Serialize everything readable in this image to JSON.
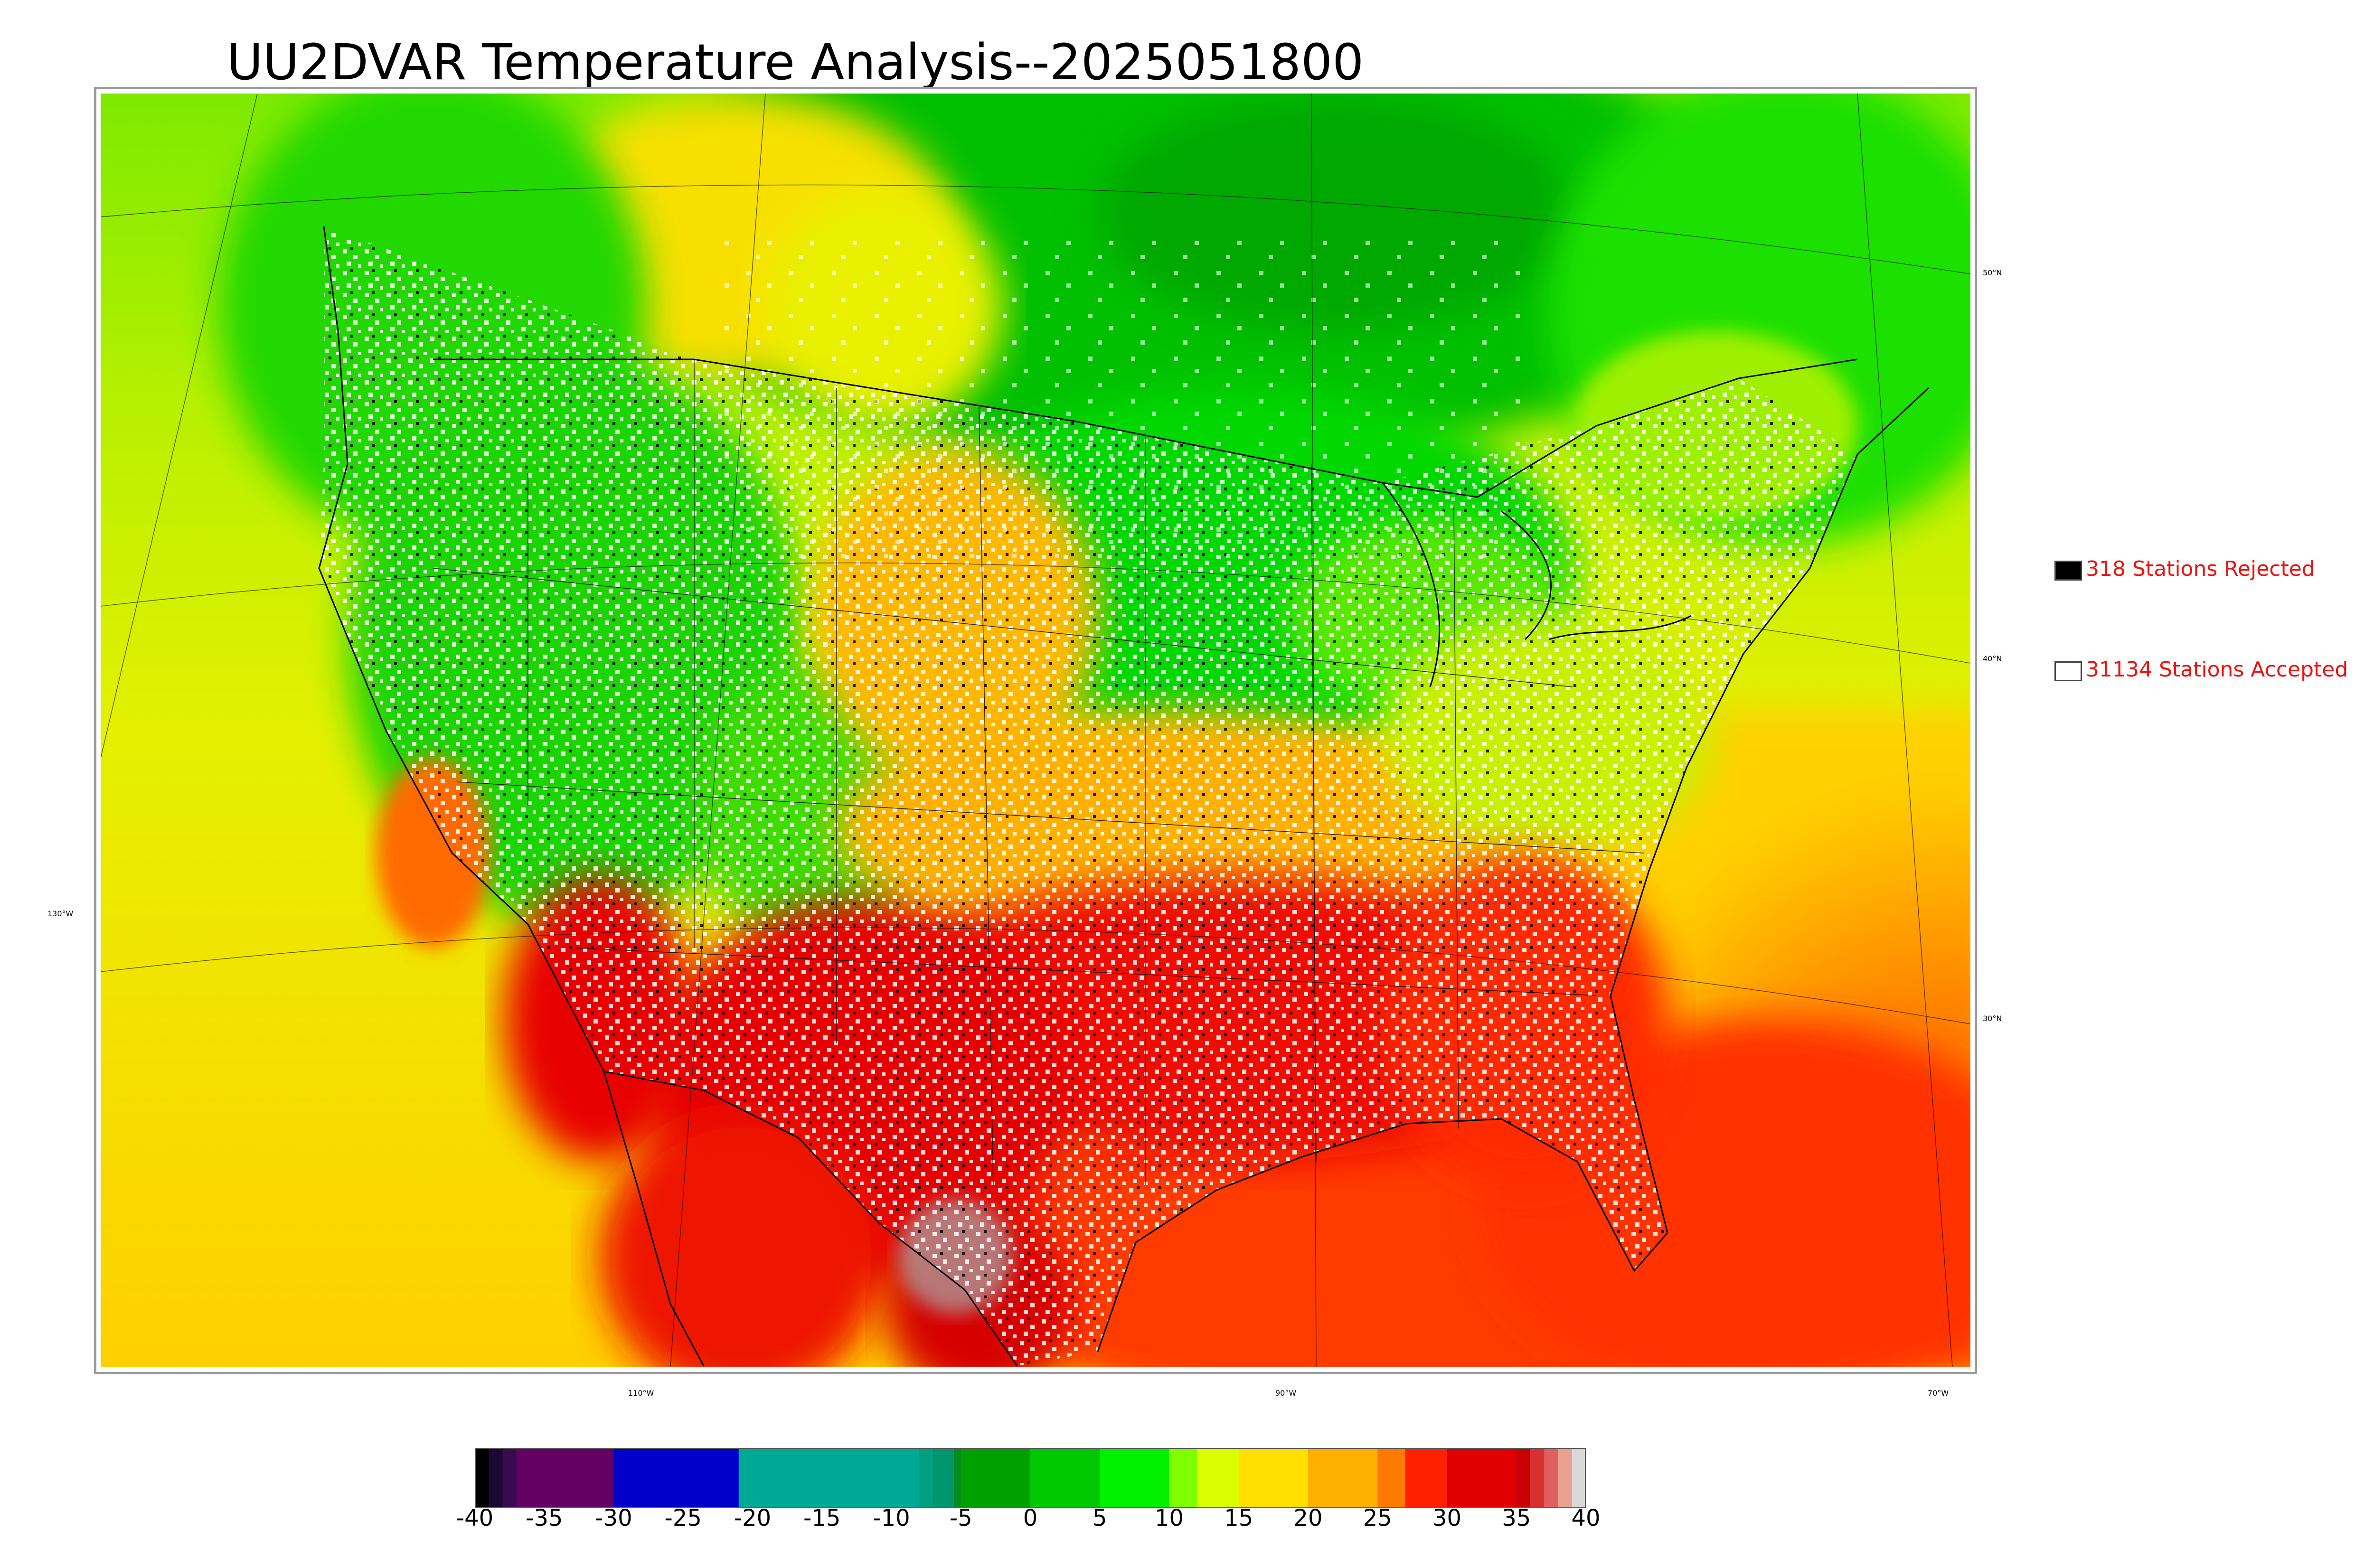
{
  "title": "UU2DVAR Temperature Analysis--2025051800",
  "legend": {
    "rejected": {
      "label": "318 Stations Rejected",
      "color": "#000000"
    },
    "accepted": {
      "label": "31134 Stations Accepted",
      "color": "#ffffff"
    }
  },
  "grid_labels": {
    "lat": [
      "50°N",
      "40°N",
      "30°N"
    ],
    "lon": [
      "130°W",
      "110°W",
      "90°W",
      "70°W"
    ]
  },
  "colorbar": {
    "ticks": [
      "-40",
      "-35",
      "-30",
      "-25",
      "-20",
      "-15",
      "-10",
      "-5",
      "0",
      "5",
      "10",
      "15",
      "20",
      "25",
      "30",
      "35",
      "40"
    ],
    "min": -40,
    "max": 40,
    "stops": [
      {
        "from": -40,
        "to": -39,
        "color": "#000000"
      },
      {
        "from": -39,
        "to": -38,
        "color": "#1a0a33"
      },
      {
        "from": -38,
        "to": -37,
        "color": "#3b0a4e"
      },
      {
        "from": -37,
        "to": -30,
        "color": "#640064"
      },
      {
        "from": -30,
        "to": -21,
        "color": "#0000c8"
      },
      {
        "from": -21,
        "to": -8,
        "color": "#00a896"
      },
      {
        "from": -8,
        "to": -7,
        "color": "#00a080"
      },
      {
        "from": -7,
        "to": -5.5,
        "color": "#00966e"
      },
      {
        "from": -5.5,
        "to": -5,
        "color": "#008c1e"
      },
      {
        "from": -5,
        "to": 0,
        "color": "#00a000"
      },
      {
        "from": 0,
        "to": 5,
        "color": "#00c800"
      },
      {
        "from": 5,
        "to": 10,
        "color": "#00f000"
      },
      {
        "from": 10,
        "to": 12,
        "color": "#7fff00"
      },
      {
        "from": 12,
        "to": 15,
        "color": "#dcff00"
      },
      {
        "from": 15,
        "to": 20,
        "color": "#ffe000"
      },
      {
        "from": 20,
        "to": 25,
        "color": "#ffb000"
      },
      {
        "from": 25,
        "to": 27,
        "color": "#ff7a00"
      },
      {
        "from": 27,
        "to": 30,
        "color": "#ff2000"
      },
      {
        "from": 30,
        "to": 35,
        "color": "#e00000"
      },
      {
        "from": 35,
        "to": 36,
        "color": "#c80000"
      },
      {
        "from": 36,
        "to": 37,
        "color": "#d83030"
      },
      {
        "from": 37,
        "to": 38,
        "color": "#e06060"
      },
      {
        "from": 38,
        "to": 39,
        "color": "#e8a090"
      },
      {
        "from": 39,
        "to": 40,
        "color": "#d8d8d8"
      }
    ]
  }
}
